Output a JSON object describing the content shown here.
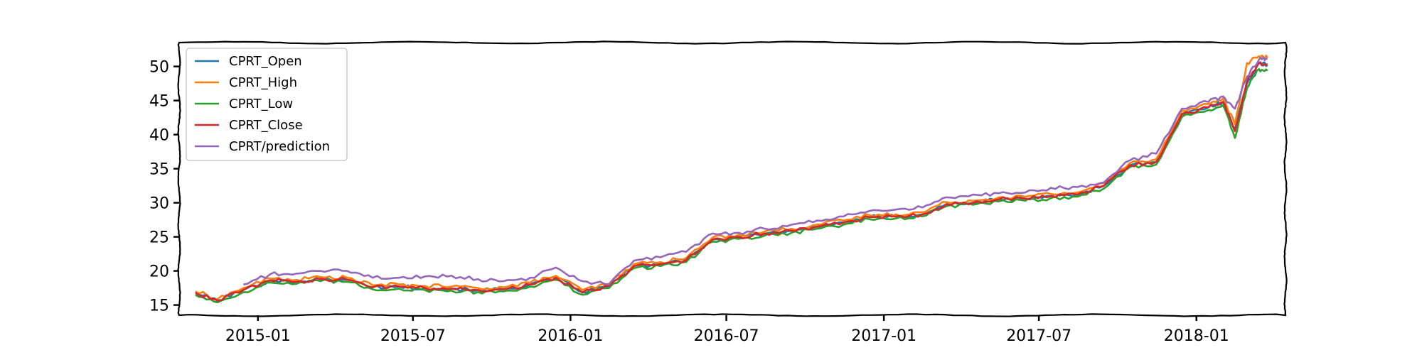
{
  "chart_data": {
    "type": "line",
    "title": "",
    "xlabel": "",
    "ylabel": "",
    "x_range": [
      "2014-10-01",
      "2018-04-15"
    ],
    "ylim": [
      13.5,
      53.5
    ],
    "grid": false,
    "legend_placement": "top-left",
    "x_ticks": [
      "2015-01",
      "2015-07",
      "2016-01",
      "2016-07",
      "2017-01",
      "2017-07",
      "2018-01"
    ],
    "y_ticks": [
      15,
      20,
      25,
      30,
      35,
      40,
      45,
      50
    ],
    "x": [
      "2014-10-20",
      "2014-11-15",
      "2014-12-15",
      "2015-01-15",
      "2015-02-15",
      "2015-03-15",
      "2015-04-15",
      "2015-05-15",
      "2015-06-15",
      "2015-07-15",
      "2015-08-15",
      "2015-09-15",
      "2015-10-15",
      "2015-11-15",
      "2015-12-15",
      "2016-01-15",
      "2016-02-15",
      "2016-03-15",
      "2016-04-15",
      "2016-05-15",
      "2016-06-15",
      "2016-07-15",
      "2016-08-15",
      "2016-09-15",
      "2016-10-15",
      "2016-11-15",
      "2016-12-15",
      "2017-01-15",
      "2017-02-15",
      "2017-03-15",
      "2017-04-15",
      "2017-05-15",
      "2017-06-15",
      "2017-07-15",
      "2017-08-15",
      "2017-09-15",
      "2017-10-15",
      "2017-11-15",
      "2017-12-15",
      "2018-01-15",
      "2018-02-01",
      "2018-02-15",
      "2018-03-01",
      "2018-03-15",
      "2018-03-25"
    ],
    "series": [
      {
        "name": "CPRT_Open",
        "color": "#1f77b4",
        "values": [
          16.8,
          15.7,
          17.2,
          18.6,
          18.4,
          18.8,
          18.7,
          17.6,
          17.7,
          17.5,
          17.4,
          17.2,
          17.3,
          18.0,
          19.0,
          16.9,
          17.8,
          20.7,
          21.0,
          21.6,
          24.6,
          25.0,
          25.5,
          25.9,
          26.5,
          27.1,
          27.9,
          28.0,
          28.3,
          29.8,
          30.0,
          30.5,
          30.6,
          31.0,
          31.2,
          32.5,
          35.5,
          36.0,
          43.0,
          44.0,
          44.8,
          40.8,
          47.5,
          50.5,
          50.2
        ]
      },
      {
        "name": "CPRT_High",
        "color": "#ff7f0e",
        "values": [
          17.0,
          15.9,
          17.5,
          18.9,
          18.7,
          19.1,
          19.0,
          17.9,
          18.0,
          17.8,
          17.7,
          17.5,
          17.6,
          18.3,
          19.3,
          17.2,
          18.1,
          21.0,
          21.3,
          21.9,
          24.9,
          25.3,
          25.8,
          26.2,
          26.8,
          27.4,
          28.2,
          28.3,
          28.6,
          30.1,
          30.3,
          30.8,
          30.9,
          31.3,
          31.5,
          32.9,
          35.8,
          36.4,
          43.5,
          44.5,
          45.3,
          41.5,
          50.5,
          51.5,
          51.3
        ]
      },
      {
        "name": "CPRT_Low",
        "color": "#2ca02c",
        "values": [
          16.5,
          15.4,
          16.9,
          18.3,
          18.1,
          18.5,
          18.4,
          17.3,
          17.4,
          17.2,
          17.1,
          16.9,
          17.0,
          17.7,
          18.7,
          16.5,
          17.5,
          20.4,
          20.7,
          21.3,
          24.3,
          24.7,
          25.2,
          25.6,
          26.2,
          26.8,
          27.6,
          27.7,
          28.0,
          29.5,
          29.7,
          30.2,
          30.3,
          30.7,
          30.9,
          32.1,
          35.2,
          35.6,
          42.6,
          43.6,
          44.3,
          39.5,
          46.8,
          49.6,
          49.4
        ]
      },
      {
        "name": "CPRT_Close",
        "color": "#d62728",
        "values": [
          16.8,
          15.6,
          17.2,
          18.6,
          18.4,
          18.8,
          18.7,
          17.6,
          17.7,
          17.5,
          17.4,
          17.2,
          17.3,
          18.0,
          19.0,
          16.8,
          17.8,
          20.7,
          21.0,
          21.6,
          24.6,
          25.0,
          25.5,
          25.9,
          26.5,
          27.1,
          27.9,
          28.0,
          28.3,
          29.8,
          30.0,
          30.5,
          30.6,
          31.0,
          31.2,
          32.5,
          35.5,
          36.0,
          43.0,
          44.0,
          44.8,
          40.5,
          47.8,
          50.5,
          50.3
        ]
      },
      {
        "name": "CPRT/prediction",
        "color": "#9467bd",
        "values": [
          null,
          null,
          18.0,
          19.5,
          19.6,
          20.0,
          20.0,
          19.0,
          19.0,
          19.2,
          19.3,
          18.8,
          18.5,
          19.0,
          20.5,
          18.5,
          18.0,
          21.5,
          22.0,
          22.8,
          25.5,
          25.6,
          26.2,
          26.8,
          27.4,
          28.0,
          28.8,
          29.0,
          29.3,
          30.8,
          31.2,
          31.4,
          31.5,
          32.2,
          32.3,
          33.0,
          36.2,
          37.2,
          43.8,
          44.8,
          45.6,
          43.8,
          48.5,
          51.0,
          51.2
        ]
      }
    ]
  }
}
